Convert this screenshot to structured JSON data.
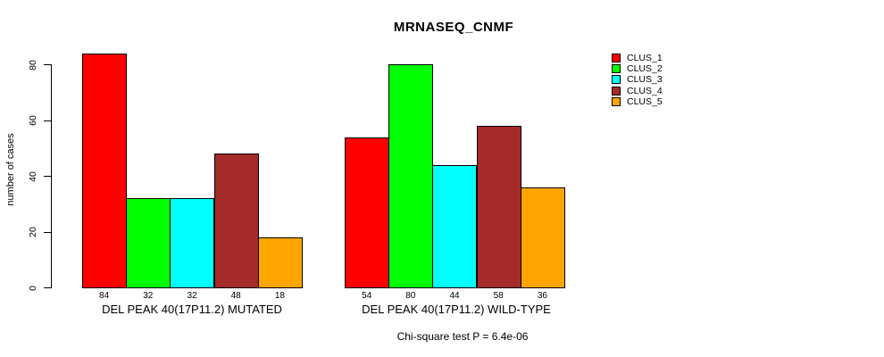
{
  "chart_data": {
    "type": "bar",
    "title": "MRNASEQ_CNMF",
    "ylabel": "number of cases",
    "yticks": [
      0,
      20,
      40,
      60,
      80
    ],
    "ylim": [
      0,
      84
    ],
    "grid": false,
    "legend_position": "right-outside",
    "series": [
      {
        "name": "CLUS_1",
        "color": "#FF0000"
      },
      {
        "name": "CLUS_2",
        "color": "#00FF00"
      },
      {
        "name": "CLUS_3",
        "color": "#00FFFF"
      },
      {
        "name": "CLUS_4",
        "color": "#A52A2A"
      },
      {
        "name": "CLUS_5",
        "color": "#FFA500"
      }
    ],
    "groups": [
      {
        "label": "DEL PEAK 40(17P11.2) MUTATED",
        "values": [
          84,
          32,
          32,
          48,
          18
        ]
      },
      {
        "label": "DEL PEAK 40(17P11.2) WILD-TYPE",
        "values": [
          54,
          80,
          44,
          58,
          36
        ]
      }
    ],
    "footnote": "Chi-square test P = 6.4e-06"
  }
}
